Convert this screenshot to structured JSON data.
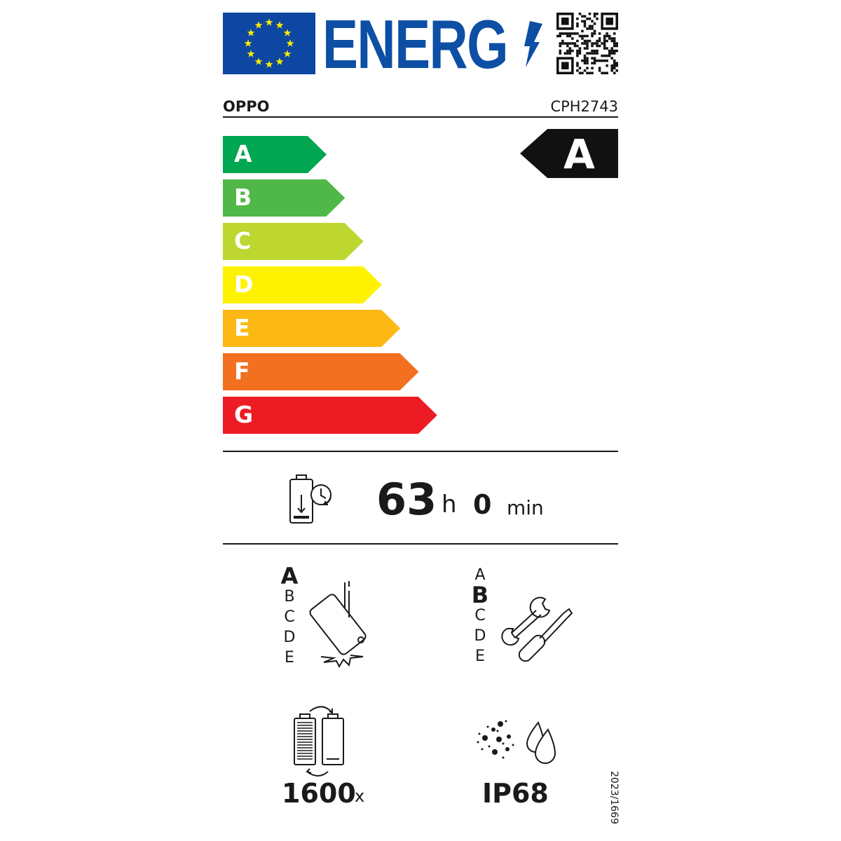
{
  "header": {
    "logo": "ENERG",
    "flag": "eu-flag",
    "qr": "qr-code"
  },
  "supplier": "OPPO",
  "model": "CPH2743",
  "scale": {
    "classes": [
      {
        "label": "A",
        "color": "#00a651"
      },
      {
        "label": "B",
        "color": "#50b848"
      },
      {
        "label": "C",
        "color": "#bed630"
      },
      {
        "label": "D",
        "color": "#fff200"
      },
      {
        "label": "E",
        "color": "#fdb913"
      },
      {
        "label": "F",
        "color": "#f37021"
      },
      {
        "label": "G",
        "color": "#ed1c24"
      }
    ],
    "rating": "A"
  },
  "battery_endurance": {
    "hours": "63",
    "h_unit": "h",
    "minutes": "0",
    "min_unit": "min"
  },
  "drop_resistance": {
    "classes": [
      "A",
      "B",
      "C",
      "D",
      "E"
    ],
    "selected": "A"
  },
  "repairability": {
    "classes": [
      "A",
      "B",
      "C",
      "D",
      "E"
    ],
    "selected": "B"
  },
  "battery_cycles": {
    "value": "1600",
    "unit": "x"
  },
  "ingress_protection": "IP68",
  "regulation": "2023/1669"
}
